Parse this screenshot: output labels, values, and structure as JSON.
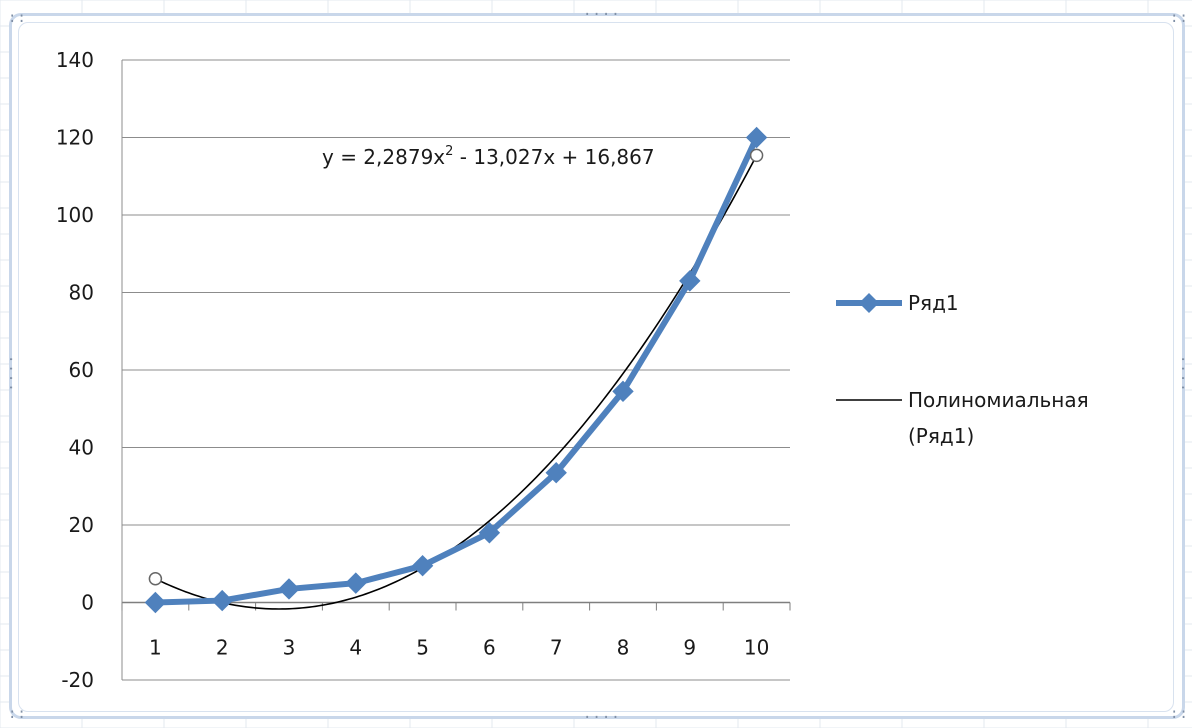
{
  "chart_data": {
    "type": "line",
    "x": [
      1,
      2,
      3,
      4,
      5,
      6,
      7,
      8,
      9,
      10
    ],
    "categories": [
      "1",
      "2",
      "3",
      "4",
      "5",
      "6",
      "7",
      "8",
      "9",
      "10"
    ],
    "series": [
      {
        "name": "Ряд1",
        "values": [
          0,
          0.5,
          3.5,
          5,
          9.5,
          18,
          33.5,
          54.5,
          83,
          120
        ],
        "color": "#4f81bd",
        "marker": "diamond"
      }
    ],
    "trendline": {
      "name": "Полиномиальная (Ряд1)",
      "name_lines": [
        "Полиномиальная",
        "(Ряд1)"
      ],
      "type": "polynomial",
      "order": 2,
      "coefficients": {
        "a": 2.2879,
        "b": -13.027,
        "c": 16.867
      },
      "equation_text": {
        "prefix": "y = 2,2879x",
        "superscript": "2",
        "suffix": " - 13,027x + 16,867"
      },
      "color": "#000000"
    },
    "y_ticks": [
      140,
      120,
      100,
      80,
      60,
      40,
      20,
      0,
      -20
    ],
    "ylim": [
      -20,
      140
    ],
    "title": "",
    "xlabel": "",
    "ylabel": "",
    "grid": "horizontal",
    "legend_position": "right"
  }
}
